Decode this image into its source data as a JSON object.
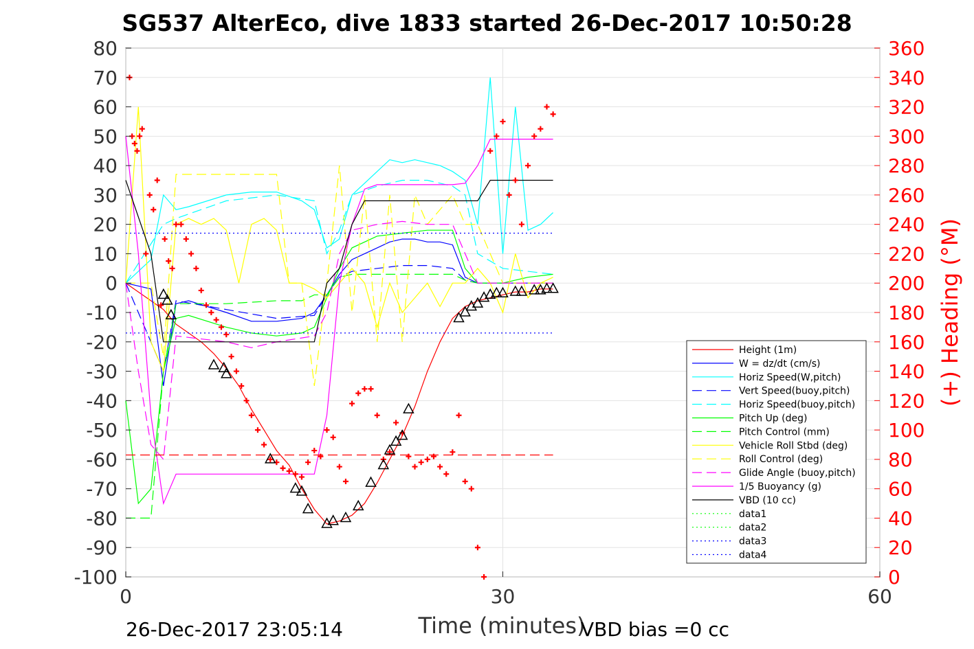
{
  "title": "SG537 AlterEco, dive 1833 started 26-Dec-2017 10:50:28",
  "footer_left": "26-Dec-2017 23:05:14",
  "footer_right": "VBD bias =0 cc",
  "chart_data": {
    "type": "line",
    "xlabel": "Time (minutes)",
    "ylabel_right": "(+) Heading (°M)",
    "xlim": [
      0,
      60
    ],
    "ylim": [
      -100,
      80
    ],
    "ylim_right": [
      0,
      360
    ],
    "xticks": [
      0,
      30,
      60
    ],
    "yticks": [
      80,
      70,
      60,
      50,
      40,
      30,
      20,
      10,
      0,
      -10,
      -20,
      -30,
      -40,
      -50,
      -60,
      -70,
      -80,
      -90,
      -100
    ],
    "yticks_right": [
      360,
      340,
      320,
      300,
      280,
      260,
      240,
      220,
      200,
      180,
      160,
      140,
      120,
      100,
      80,
      60,
      40,
      20,
      0
    ],
    "legend_position": "lower-right",
    "series": [
      {
        "name": "Height (1m)",
        "color": "#ff0000",
        "dash": "solid",
        "x": [
          0,
          1,
          2,
          3,
          4,
          5,
          6,
          7,
          8,
          9,
          10,
          11,
          12,
          13,
          14,
          15,
          16,
          17,
          18,
          19,
          20,
          21,
          22,
          23,
          24,
          25,
          26,
          27,
          28,
          29,
          30,
          31,
          32,
          33,
          34
        ],
        "y": [
          0,
          -3,
          -6,
          -9,
          -14,
          -17,
          -20,
          -24,
          -29,
          -35,
          -43,
          -50,
          -57,
          -62,
          -70,
          -77,
          -82,
          -81,
          -79,
          -75,
          -68,
          -60,
          -52,
          -42,
          -30,
          -20,
          -12,
          -8,
          -6,
          -5,
          -4,
          -3,
          -3,
          -2,
          -2
        ]
      },
      {
        "name": "W = dz/dt (cm/s)",
        "color": "#0000ff",
        "dash": "solid",
        "x": [
          0,
          2,
          3,
          4,
          5,
          8,
          10,
          12,
          14,
          15,
          16,
          17,
          18,
          19,
          20,
          21,
          22,
          23,
          24,
          25,
          26,
          27,
          28,
          30,
          32,
          34
        ],
        "y": [
          0,
          -2,
          -35,
          -7,
          -6,
          -10,
          -13,
          -13,
          -12,
          -10,
          -4,
          3,
          8,
          10,
          12,
          14,
          15,
          15,
          14,
          14,
          13,
          2,
          0,
          0,
          0,
          0
        ]
      },
      {
        "name": "Horiz Speed(W,pitch)",
        "color": "#00ffff",
        "dash": "solid",
        "x": [
          0,
          2,
          3,
          4,
          5,
          8,
          10,
          12,
          14,
          15,
          16,
          17,
          18,
          19,
          20,
          21,
          22,
          23,
          24,
          25,
          26,
          27,
          28,
          29,
          30,
          31,
          32,
          33,
          34
        ],
        "y": [
          0,
          8,
          30,
          25,
          26,
          30,
          31,
          31,
          28,
          25,
          12,
          15,
          30,
          34,
          38,
          42,
          41,
          42,
          41,
          40,
          38,
          35,
          20,
          70,
          10,
          60,
          18,
          20,
          24
        ]
      },
      {
        "name": "Vert Speed(buoy,pitch)",
        "color": "#0000ff",
        "dash": "dashed",
        "x": [
          0,
          3,
          4,
          8,
          12,
          15,
          16,
          17,
          18,
          20,
          22,
          24,
          26,
          27,
          28,
          30,
          34
        ],
        "y": [
          0,
          -30,
          -6,
          -9,
          -12,
          -11,
          -4,
          2,
          4,
          5,
          6,
          6,
          5,
          1,
          0,
          0,
          0
        ]
      },
      {
        "name": "Horiz Speed(buoy,pitch)",
        "color": "#00ffff",
        "dash": "dashed",
        "x": [
          0,
          3,
          4,
          8,
          12,
          15,
          16,
          17,
          18,
          20,
          22,
          24,
          26,
          27,
          28,
          30,
          34
        ],
        "y": [
          0,
          20,
          22,
          28,
          30,
          28,
          10,
          18,
          30,
          33,
          35,
          35,
          33,
          30,
          10,
          5,
          3
        ]
      },
      {
        "name": "Pitch Up (deg)",
        "color": "#00ff00",
        "dash": "solid",
        "x": [
          0,
          1,
          2,
          3,
          4,
          5,
          8,
          10,
          12,
          14,
          15,
          16,
          17,
          18,
          20,
          22,
          24,
          26,
          27,
          28,
          30,
          32,
          34
        ],
        "y": [
          -40,
          -75,
          -70,
          -30,
          -12,
          -11,
          -15,
          -17,
          -18,
          -17,
          -15,
          -5,
          5,
          12,
          16,
          17,
          18,
          18,
          5,
          0,
          0,
          2,
          3
        ]
      },
      {
        "name": "Pitch Control (mm)",
        "color": "#00ff00",
        "dash": "dashed",
        "x": [
          0,
          2,
          3,
          4,
          8,
          12,
          14,
          15,
          16,
          17,
          18,
          20,
          24,
          26,
          27,
          28,
          34
        ],
        "y": [
          -80,
          -80,
          -30,
          -7,
          -7,
          -6,
          -6,
          -4,
          -4,
          2,
          3,
          3,
          3,
          3,
          1,
          0,
          0
        ]
      },
      {
        "name": "Vehicle Roll Stbd (deg)",
        "color": "#ffff00",
        "dash": "solid",
        "x": [
          0,
          1,
          2,
          3,
          4,
          5,
          6,
          7,
          8,
          9,
          10,
          11,
          12,
          13,
          14,
          15,
          16,
          17,
          18,
          19,
          20,
          21,
          22,
          23,
          24,
          25,
          26,
          27,
          28,
          29,
          30,
          31,
          32,
          33,
          34
        ],
        "y": [
          0,
          60,
          -20,
          -30,
          20,
          22,
          20,
          22,
          18,
          0,
          20,
          22,
          18,
          0,
          0,
          -2,
          -5,
          0,
          5,
          0,
          -15,
          0,
          -10,
          -5,
          0,
          -8,
          0,
          0,
          5,
          0,
          -10,
          10,
          -5,
          0,
          2
        ]
      },
      {
        "name": "Roll Control (deg)",
        "color": "#ffff00",
        "dash": "dashed",
        "x": [
          0,
          2,
          3,
          4,
          5,
          8,
          10,
          12,
          13,
          14,
          15,
          16,
          17,
          18,
          19,
          20,
          21,
          22,
          23,
          24,
          26,
          27,
          28,
          30,
          34
        ],
        "y": [
          0,
          0,
          -25,
          37,
          37,
          37,
          37,
          37,
          0,
          0,
          -35,
          0,
          40,
          -10,
          30,
          -20,
          30,
          -20,
          30,
          20,
          30,
          20,
          20,
          0,
          0
        ]
      },
      {
        "name": "Glide Angle (buoy,pitch)",
        "color": "#ff00ff",
        "dash": "dashed",
        "x": [
          0,
          1,
          2,
          3,
          4,
          8,
          10,
          12,
          15,
          16,
          17,
          18,
          20,
          22,
          24,
          26,
          27,
          28,
          30,
          34
        ],
        "y": [
          0,
          -30,
          -55,
          -60,
          -18,
          -20,
          -22,
          -20,
          -18,
          -10,
          10,
          18,
          20,
          21,
          20,
          20,
          10,
          0,
          0,
          0
        ]
      },
      {
        "name": "1/5 Buoyancy (g)",
        "color": "#ff00ff",
        "dash": "solid",
        "x": [
          0,
          1,
          2,
          3,
          4,
          8,
          12,
          14,
          15,
          16,
          17,
          18,
          19,
          20,
          24,
          26,
          27,
          28,
          29,
          30,
          34
        ],
        "y": [
          50,
          10,
          -45,
          -75,
          -65,
          -65,
          -65,
          -65,
          -65,
          -45,
          0,
          20,
          32,
          33.5,
          33.5,
          33.5,
          34,
          40,
          49,
          49,
          49
        ]
      },
      {
        "name": "VBD (10 cc)",
        "color": "#000000",
        "dash": "solid",
        "x": [
          0,
          2,
          3,
          4,
          8,
          12,
          14,
          15,
          16,
          17,
          18,
          19,
          20,
          24,
          26,
          27,
          28,
          29,
          30,
          34
        ],
        "y": [
          35,
          10,
          -20,
          -20,
          -20,
          -20,
          -20,
          -20,
          0,
          5,
          20,
          28,
          28,
          28,
          28,
          28,
          28,
          35,
          35,
          35
        ]
      },
      {
        "name": "data1",
        "color": "#00ff00",
        "dash": "dotted",
        "x": [],
        "y": []
      },
      {
        "name": "data2",
        "color": "#00ff00",
        "dash": "dotted",
        "x": [],
        "y": []
      },
      {
        "name": "data3",
        "color": "#0000ff",
        "dash": "dotted",
        "x": [
          0,
          34
        ],
        "y": [
          17,
          17
        ]
      },
      {
        "name": "data4",
        "color": "#0000ff",
        "dash": "dotted",
        "x": [
          0,
          34
        ],
        "y": [
          -17,
          -17
        ]
      }
    ],
    "reference_line": {
      "color": "#ff0000",
      "dash": "dashed",
      "x": [
        0,
        34
      ],
      "y": [
        -58.5,
        -58.5
      ]
    },
    "heading_points": {
      "color": "#ff0000",
      "marker": "+",
      "x": [
        0.3,
        0.5,
        0.7,
        0.9,
        1.1,
        1.3,
        1.6,
        1.9,
        2.2,
        2.5,
        2.8,
        3.1,
        3.4,
        3.7,
        4.0,
        4.4,
        4.8,
        5.2,
        5.6,
        6.0,
        6.4,
        6.8,
        7.2,
        7.6,
        8.0,
        8.4,
        8.8,
        9.2,
        9.6,
        10.0,
        10.5,
        11.0,
        11.5,
        12.0,
        12.5,
        13.0,
        13.5,
        14.0,
        14.5,
        15.0,
        15.5,
        16.0,
        16.5,
        17.0,
        17.5,
        18.0,
        18.5,
        19.0,
        19.5,
        20.0,
        20.5,
        21.0,
        21.5,
        22.0,
        22.5,
        23.0,
        23.5,
        24.0,
        24.5,
        25.0,
        25.5,
        26.0,
        26.5,
        27.0,
        27.5,
        28.0,
        28.5,
        29.0,
        29.5,
        30.0,
        30.5,
        31.0,
        31.5,
        32.0,
        32.5,
        33.0,
        33.5,
        34.0
      ],
      "y": [
        340,
        300,
        295,
        290,
        300,
        305,
        220,
        260,
        250,
        270,
        185,
        230,
        215,
        210,
        240,
        240,
        230,
        220,
        210,
        195,
        185,
        180,
        175,
        170,
        165,
        150,
        140,
        130,
        120,
        110,
        100,
        90,
        80,
        78,
        74,
        72,
        70,
        68,
        78,
        86,
        82,
        100,
        95,
        75,
        65,
        118,
        125,
        128,
        128,
        110,
        80,
        85,
        105,
        98,
        82,
        75,
        78,
        80,
        82,
        75,
        70,
        85,
        110,
        65,
        60,
        20,
        0,
        290,
        300,
        310,
        260,
        270,
        240,
        280,
        300,
        305,
        320,
        315
      ]
    },
    "profile_markers": {
      "color": "#000000",
      "marker": "triangle",
      "x": [
        3.0,
        3.3,
        3.6,
        7.0,
        7.8,
        8.0,
        11.5,
        13.5,
        14.0,
        14.5,
        16.0,
        16.5,
        17.5,
        18.5,
        19.5,
        20.5,
        21.0,
        21.5,
        22.0,
        22.5,
        26.5,
        27.0,
        27.5,
        28.0,
        28.5,
        29.0,
        29.5,
        30.0,
        31.0,
        31.5,
        32.5,
        33.0,
        33.5,
        34.0
      ],
      "y": [
        -4,
        -6,
        -11,
        -28,
        -29,
        -31,
        -60,
        -70,
        -71,
        -77,
        -82,
        -81,
        -80,
        -76,
        -68,
        -62,
        -57,
        -54,
        -52,
        -43,
        -12,
        -10,
        -8,
        -7,
        -5,
        -4,
        -3.5,
        -3.5,
        -3,
        -3,
        -2.5,
        -2.5,
        -2,
        -2
      ]
    }
  }
}
